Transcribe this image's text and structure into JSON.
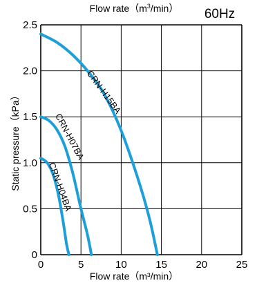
{
  "header": {
    "top_axis_title_main": "Flow rate（m",
    "top_axis_title_sup": "3",
    "top_axis_title_end": "/min）",
    "frequency_label": "60Hz"
  },
  "chart_data": {
    "type": "line",
    "title": "60Hz",
    "xlabel": "Flow rate（m³/min）",
    "ylabel": "Static pressure（kPa）",
    "xlim": [
      0,
      25
    ],
    "ylim": [
      0,
      2.5
    ],
    "x_ticks": [
      "0",
      "5",
      "10",
      "15",
      "20",
      "25"
    ],
    "y_ticks": [
      "0",
      "0.5",
      "1.0",
      "1.5",
      "2.0",
      "2.5"
    ],
    "grid": true,
    "legend": "none (curves labeled directly)",
    "series": [
      {
        "name": "CRN-H15BA",
        "points": [
          [
            0,
            2.4
          ],
          [
            2,
            2.31
          ],
          [
            4,
            2.17
          ],
          [
            6,
            1.98
          ],
          [
            8,
            1.73
          ],
          [
            10,
            1.35
          ],
          [
            12,
            0.85
          ],
          [
            13.5,
            0.4
          ],
          [
            14.5,
            0.0
          ]
        ]
      },
      {
        "name": "CRN-H07BA",
        "points": [
          [
            0,
            1.5
          ],
          [
            1,
            1.46
          ],
          [
            2,
            1.36
          ],
          [
            3,
            1.18
          ],
          [
            4,
            0.88
          ],
          [
            5,
            0.5
          ],
          [
            5.8,
            0.22
          ],
          [
            6.3,
            0.0
          ]
        ]
      },
      {
        "name": "CRN-H04BA",
        "points": [
          [
            0,
            1.05
          ],
          [
            0.8,
            1.0
          ],
          [
            1.5,
            0.88
          ],
          [
            2.2,
            0.65
          ],
          [
            2.8,
            0.35
          ],
          [
            3.2,
            0.12
          ],
          [
            3.5,
            0.0
          ]
        ]
      }
    ],
    "line_color": "#1e9fd9"
  }
}
